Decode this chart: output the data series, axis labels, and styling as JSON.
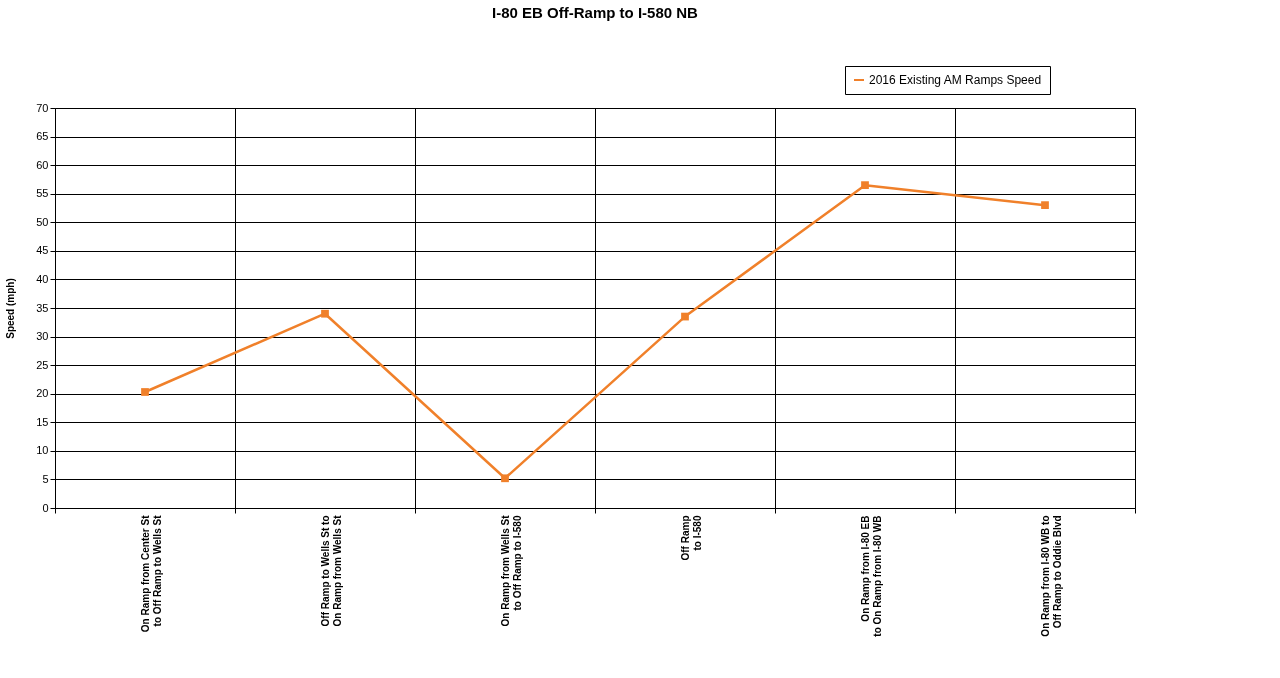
{
  "chart_data": {
    "type": "line",
    "title": "I-80 EB Off-Ramp to I-580 NB",
    "ylabel": "Speed (mph)",
    "categories": [
      "On Ramp from Center St to Off Ramp to Wells St",
      "Off Ramp to Wells St to On Ramp from Wells St",
      "On Ramp from Wells St to Off Ramp to I-580",
      "Off Ramp to I-580",
      "On Ramp from I-80 EB to On Ramp from I-80 WB",
      "On Ramp from I-80 WB to Off Ramp to Oddie Blvd"
    ],
    "series": [
      {
        "name": "2016 Existing AM Ramps Speed",
        "color": "#f0802a",
        "values": [
          20.3,
          34,
          5.2,
          33.5,
          56.5,
          53
        ]
      }
    ],
    "ylim": [
      0,
      70
    ],
    "yticks": [
      0,
      5,
      10,
      15,
      20,
      25,
      30,
      35,
      40,
      45,
      50,
      55,
      60,
      65,
      70
    ],
    "grid": true,
    "legend": "top right",
    "marker": "square",
    "line_style": "solid"
  }
}
